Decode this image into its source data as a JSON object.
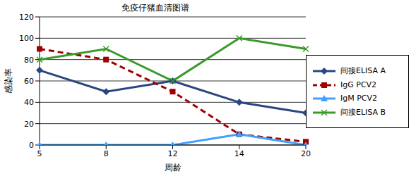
{
  "chart_data": {
    "type": "line",
    "title": "免疫仔猪血清图谱",
    "x_label": "周龄",
    "y_label": "感染率",
    "categories": [
      "5",
      "8",
      "12",
      "14",
      "20"
    ],
    "series": [
      {
        "name": "间接ELISA A",
        "color": "#2a4680",
        "marker": "diamond",
        "line_style": "solid",
        "values": [
          70,
          50,
          60,
          40,
          30
        ]
      },
      {
        "name": "IgG PCV2",
        "color": "#a00000",
        "marker": "square",
        "line_style": "dashed",
        "values": [
          90,
          80,
          50,
          10,
          3
        ]
      },
      {
        "name": "IgM PCV2",
        "color": "#3fa0ff",
        "marker": "triangle",
        "line_style": "solid",
        "values": [
          0,
          0,
          0,
          10,
          0
        ]
      },
      {
        "name": "间接ELISA B",
        "color": "#3a9a2a",
        "marker": "x",
        "line_style": "solid",
        "values": [
          80,
          90,
          60,
          100,
          90
        ]
      }
    ],
    "ylim": [
      0,
      120
    ],
    "yticks": [
      0,
      20,
      40,
      60,
      80,
      100,
      120
    ],
    "grid": true,
    "legend": "right"
  }
}
